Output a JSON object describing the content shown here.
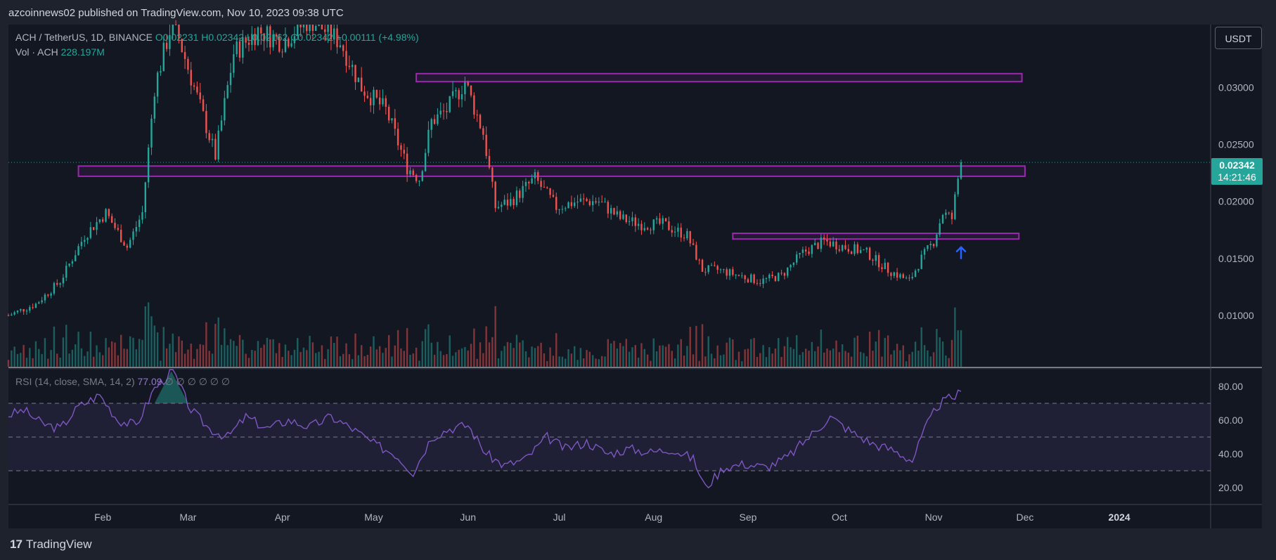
{
  "header": {
    "publisher": "azcoinnews02 published on TradingView.com, Nov 10, 2023 09:38 UTC"
  },
  "legend": {
    "symbol": "ACH / TetherUS, 1D, BINANCE",
    "ohlc": "O0.02231 H0.02342 L0.02162 C0.02342",
    "change": "+0.00111 (+4.98%)",
    "vol_label": "Vol · ACH",
    "vol_value": "228.197M",
    "rsi_label": "RSI (14, close, SMA, 14, 2)",
    "rsi_value": "77.09",
    "rsi_extra": "∅ ∅ ∅ ∅ ∅ ∅"
  },
  "toolbar": {
    "currency_button": "USDT"
  },
  "last_price": {
    "price": "0.02342",
    "countdown": "14:21:46"
  },
  "footer": {
    "brand": "TradingView",
    "logo_mark": "17"
  },
  "colors": {
    "background": "#1e222d",
    "pane": "#131722",
    "up": "#26a69a",
    "down": "#ef5350",
    "zone": "#9c27b0",
    "rsi": "#7e57c2",
    "arrow": "#2962ff"
  },
  "icons": {
    "support_marker": "arrow-up-icon"
  },
  "chart_data": [
    {
      "type": "candlestick",
      "title": "ACH / TetherUS, 1D, BINANCE",
      "xlabel": "",
      "ylabel": "",
      "x_ticks": [
        "Feb",
        "Mar",
        "Apr",
        "May",
        "Jun",
        "Jul",
        "Aug",
        "Sep",
        "Oct",
        "Nov",
        "Dec",
        "2024"
      ],
      "y_ticks": [
        "0.03000",
        "0.02500",
        "0.02000",
        "0.01500",
        "0.01000"
      ],
      "ylim": [
        0.0055,
        0.0355
      ],
      "x_range": [
        "2023-01-01",
        "2024-01-31"
      ],
      "grid": false,
      "series": [
        {
          "name": "ACH / TetherUS",
          "points": [
            {
              "date": "2023-01-01",
              "close": 0.01
            },
            {
              "date": "2023-01-10",
              "close": 0.011
            },
            {
              "date": "2023-01-18",
              "close": 0.013
            },
            {
              "date": "2023-01-26",
              "close": 0.017
            },
            {
              "date": "2023-02-02",
              "close": 0.019
            },
            {
              "date": "2023-02-09",
              "close": 0.016
            },
            {
              "date": "2023-02-14",
              "close": 0.019
            },
            {
              "date": "2023-02-18",
              "close": 0.03
            },
            {
              "date": "2023-02-24",
              "close": 0.036
            },
            {
              "date": "2023-03-03",
              "close": 0.03
            },
            {
              "date": "2023-03-10",
              "close": 0.024
            },
            {
              "date": "2023-03-16",
              "close": 0.033
            },
            {
              "date": "2023-03-24",
              "close": 0.035
            },
            {
              "date": "2023-04-01",
              "close": 0.034
            },
            {
              "date": "2023-04-10",
              "close": 0.036
            },
            {
              "date": "2023-04-20",
              "close": 0.034
            },
            {
              "date": "2023-04-27",
              "close": 0.03
            },
            {
              "date": "2023-05-05",
              "close": 0.028
            },
            {
              "date": "2023-05-12",
              "close": 0.023
            },
            {
              "date": "2023-05-16",
              "close": 0.022
            },
            {
              "date": "2023-05-20",
              "close": 0.027
            },
            {
              "date": "2023-05-25",
              "close": 0.028
            },
            {
              "date": "2023-05-31",
              "close": 0.0305
            },
            {
              "date": "2023-06-06",
              "close": 0.026
            },
            {
              "date": "2023-06-10",
              "close": 0.0195
            },
            {
              "date": "2023-06-15",
              "close": 0.02
            },
            {
              "date": "2023-06-23",
              "close": 0.022
            },
            {
              "date": "2023-06-30",
              "close": 0.0195
            },
            {
              "date": "2023-07-07",
              "close": 0.02
            },
            {
              "date": "2023-07-14",
              "close": 0.02
            },
            {
              "date": "2023-07-21",
              "close": 0.0185
            },
            {
              "date": "2023-07-28",
              "close": 0.018
            },
            {
              "date": "2023-08-04",
              "close": 0.018
            },
            {
              "date": "2023-08-12",
              "close": 0.017
            },
            {
              "date": "2023-08-17",
              "close": 0.014
            },
            {
              "date": "2023-08-22",
              "close": 0.014
            },
            {
              "date": "2023-08-29",
              "close": 0.0135
            },
            {
              "date": "2023-09-05",
              "close": 0.013
            },
            {
              "date": "2023-09-12",
              "close": 0.0135
            },
            {
              "date": "2023-09-19",
              "close": 0.0155
            },
            {
              "date": "2023-09-26",
              "close": 0.0165
            },
            {
              "date": "2023-10-03",
              "close": 0.016
            },
            {
              "date": "2023-10-10",
              "close": 0.0155
            },
            {
              "date": "2023-10-17",
              "close": 0.014
            },
            {
              "date": "2023-10-24",
              "close": 0.013
            },
            {
              "date": "2023-10-28",
              "close": 0.015
            },
            {
              "date": "2023-11-01",
              "close": 0.0165
            },
            {
              "date": "2023-11-04",
              "close": 0.019
            },
            {
              "date": "2023-11-07",
              "close": 0.0185
            },
            {
              "date": "2023-11-09",
              "close": 0.022
            },
            {
              "date": "2023-11-10",
              "close": 0.02342
            }
          ]
        }
      ],
      "zones": [
        {
          "label": "resistance-zone-top",
          "price_low": 0.0305,
          "price_high": 0.0312,
          "start": "2023-05-15",
          "end": "2023-11-30"
        },
        {
          "label": "resistance-zone-mid",
          "price_low": 0.0222,
          "price_high": 0.0231,
          "start": "2023-01-24",
          "end": "2023-12-01"
        },
        {
          "label": "support-zone",
          "price_low": 0.0167,
          "price_high": 0.0172,
          "start": "2023-08-27",
          "end": "2023-11-29"
        }
      ]
    },
    {
      "type": "line",
      "title": "RSI (14, close, SMA, 14, 2)",
      "xlabel": "",
      "ylabel": "",
      "y_ticks": [
        "80.00",
        "60.00",
        "40.00",
        "20.00"
      ],
      "ylim": [
        10,
        90
      ],
      "levels": [
        70,
        50,
        30
      ],
      "series": [
        {
          "name": "RSI",
          "points": [
            {
              "date": "2023-01-01",
              "value": 63
            },
            {
              "date": "2023-01-06",
              "value": 66
            },
            {
              "date": "2023-01-12",
              "value": 58
            },
            {
              "date": "2023-01-18",
              "value": 55
            },
            {
              "date": "2023-01-24",
              "value": 68
            },
            {
              "date": "2023-01-31",
              "value": 75
            },
            {
              "date": "2023-02-06",
              "value": 60
            },
            {
              "date": "2023-02-12",
              "value": 57
            },
            {
              "date": "2023-02-18",
              "value": 79
            },
            {
              "date": "2023-02-24",
              "value": 89
            },
            {
              "date": "2023-03-02",
              "value": 66
            },
            {
              "date": "2023-03-08",
              "value": 55
            },
            {
              "date": "2023-03-14",
              "value": 50
            },
            {
              "date": "2023-03-20",
              "value": 62
            },
            {
              "date": "2023-03-27",
              "value": 55
            },
            {
              "date": "2023-04-03",
              "value": 60
            },
            {
              "date": "2023-04-10",
              "value": 56
            },
            {
              "date": "2023-04-17",
              "value": 62
            },
            {
              "date": "2023-04-24",
              "value": 55
            },
            {
              "date": "2023-05-01",
              "value": 46
            },
            {
              "date": "2023-05-08",
              "value": 40
            },
            {
              "date": "2023-05-14",
              "value": 29
            },
            {
              "date": "2023-05-20",
              "value": 50
            },
            {
              "date": "2023-05-26",
              "value": 55
            },
            {
              "date": "2023-06-01",
              "value": 57
            },
            {
              "date": "2023-06-07",
              "value": 40
            },
            {
              "date": "2023-06-13",
              "value": 33
            },
            {
              "date": "2023-06-20",
              "value": 37
            },
            {
              "date": "2023-06-27",
              "value": 50
            },
            {
              "date": "2023-07-03",
              "value": 43
            },
            {
              "date": "2023-07-10",
              "value": 47
            },
            {
              "date": "2023-07-17",
              "value": 40
            },
            {
              "date": "2023-07-24",
              "value": 43
            },
            {
              "date": "2023-07-31",
              "value": 41
            },
            {
              "date": "2023-08-07",
              "value": 43
            },
            {
              "date": "2023-08-14",
              "value": 37
            },
            {
              "date": "2023-08-18",
              "value": 20
            },
            {
              "date": "2023-08-24",
              "value": 32
            },
            {
              "date": "2023-08-31",
              "value": 34
            },
            {
              "date": "2023-09-07",
              "value": 32
            },
            {
              "date": "2023-09-14",
              "value": 38
            },
            {
              "date": "2023-09-21",
              "value": 50
            },
            {
              "date": "2023-09-28",
              "value": 62
            },
            {
              "date": "2023-10-05",
              "value": 53
            },
            {
              "date": "2023-10-12",
              "value": 46
            },
            {
              "date": "2023-10-19",
              "value": 42
            },
            {
              "date": "2023-10-25",
              "value": 36
            },
            {
              "date": "2023-10-29",
              "value": 54
            },
            {
              "date": "2023-11-02",
              "value": 68
            },
            {
              "date": "2023-11-05",
              "value": 72
            },
            {
              "date": "2023-11-08",
              "value": 74
            },
            {
              "date": "2023-11-10",
              "value": 77.09
            }
          ]
        }
      ]
    }
  ]
}
